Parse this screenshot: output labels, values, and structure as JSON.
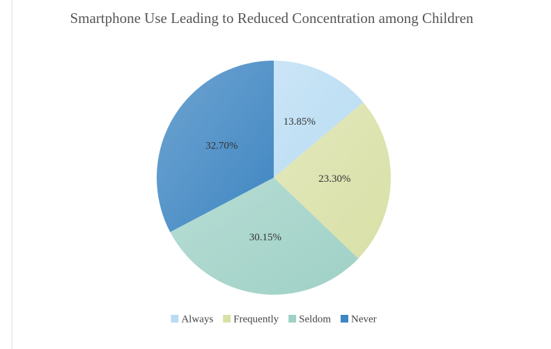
{
  "chart_data": {
    "type": "pie",
    "title": "Smartphone Use Leading to Reduced Concentration among Children",
    "categories": [
      "Always",
      "Frequently",
      "Seldom",
      "Never"
    ],
    "values": [
      13.85,
      23.3,
      30.15,
      32.7
    ],
    "value_labels": [
      "13.85%",
      "23.30%",
      "30.15%",
      "32.70%"
    ],
    "colors": [
      "#b9dcf3",
      "#d9e0a6",
      "#9fd1c6",
      "#3f86c2"
    ],
    "legend": "bottom"
  }
}
